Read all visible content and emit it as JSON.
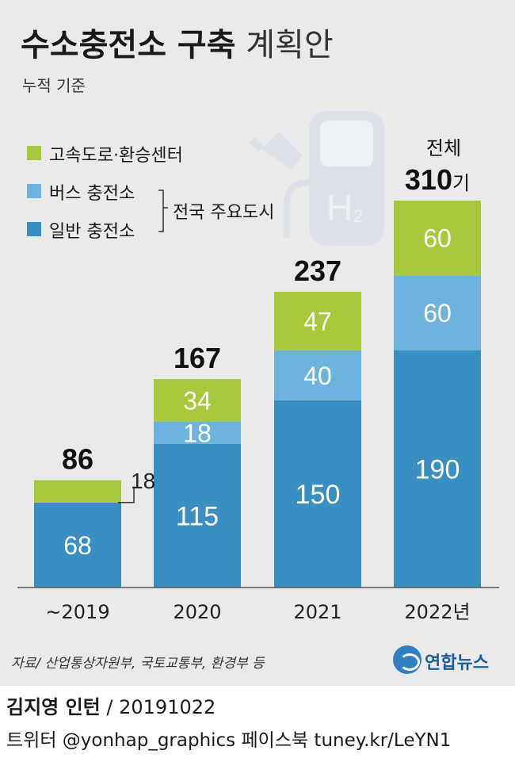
{
  "header": {
    "title_bold": "수소충전소 구축",
    "title_light": "계획안",
    "subtitle": "누적 기준"
  },
  "legend": {
    "items": [
      {
        "label": "고속도로·환승센터",
        "color": "#a7c83d"
      },
      {
        "label": "버스 충전소",
        "color": "#6cb4dd"
      },
      {
        "label": "일반 충전소",
        "color": "#3a8fc2"
      }
    ],
    "bracket_label": "전국 주요도시"
  },
  "chart_data": {
    "type": "bar",
    "stacked": true,
    "categories": [
      "~2019",
      "2020",
      "2021",
      "2022년"
    ],
    "series": [
      {
        "name": "일반 충전소",
        "values": [
          68,
          115,
          150,
          190
        ],
        "color": "#3a8fc2"
      },
      {
        "name": "버스 충전소",
        "values": [
          0,
          18,
          40,
          60
        ],
        "color": "#6cb4dd"
      },
      {
        "name": "고속도로·환승센터",
        "values": [
          18,
          34,
          47,
          60
        ],
        "color": "#a7c83d"
      }
    ],
    "totals": [
      "86",
      "167",
      "237",
      "310"
    ],
    "total_prefix_last": "전체",
    "total_unit_last": "기",
    "callout_label": "18",
    "ylim": [
      0,
      310
    ]
  },
  "footer": {
    "source": "자료/ 산업통상자원부, 국토교통부, 환경부 등",
    "logo_text": "연합뉴스",
    "credit_name": "김지영 인턴",
    "credit_date": "/ 20191022",
    "social": "트위터 @yonhap_graphics  페이스북 tuney.kr/LeYN1"
  }
}
